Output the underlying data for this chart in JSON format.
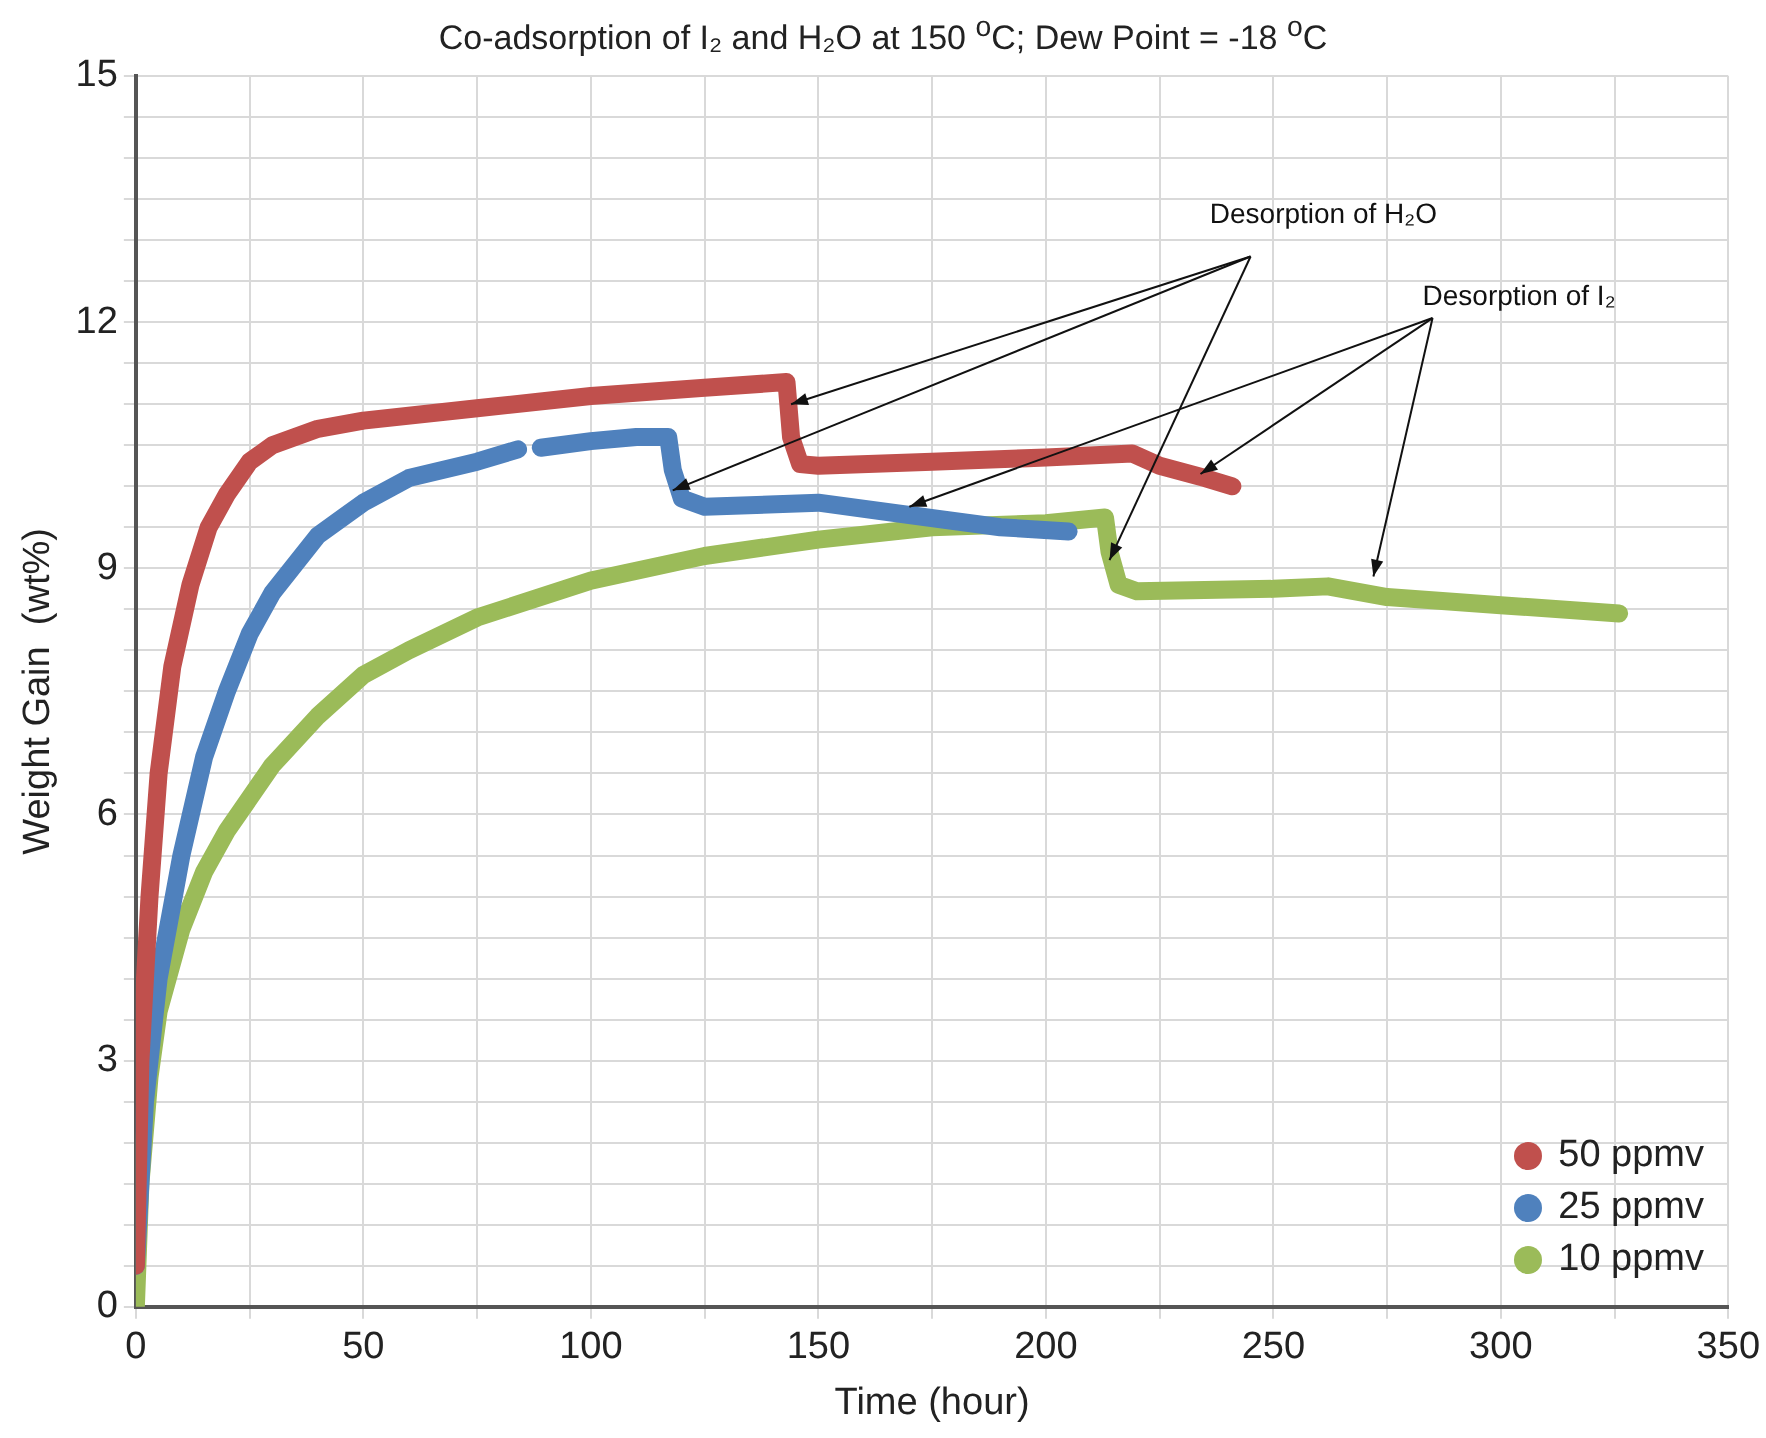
{
  "chart_data": {
    "type": "line",
    "title": "Co-adsorption of I₂ and H₂O at 150 $^{o}$C; Dew Point = -18 $^{o}$C",
    "xlabel": "Time (hour)",
    "ylabel": "Weight Gain  (wt%)",
    "xlim": [
      0,
      350
    ],
    "ylim": [
      0,
      15
    ],
    "xticks": [
      0,
      {
        "value": 25,
        "label": null
      },
      50,
      {
        "value": 75,
        "label": null
      },
      100,
      {
        "value": 125,
        "label": null
      },
      150,
      {
        "value": 175,
        "label": null
      },
      200,
      {
        "value": 225,
        "label": null
      },
      250,
      {
        "value": 275,
        "label": null
      },
      300,
      {
        "value": 325,
        "label": null
      },
      350
    ],
    "yticks": [
      0,
      {
        "value": 0.5,
        "label": null
      },
      {
        "value": 1,
        "label": null
      },
      {
        "value": 1.5,
        "label": null
      },
      {
        "value": 2,
        "label": null
      },
      {
        "value": 2.5,
        "label": null
      },
      3,
      {
        "value": 3.5,
        "label": null
      },
      {
        "value": 4,
        "label": null
      },
      {
        "value": 4.5,
        "label": null
      },
      {
        "value": 5,
        "label": null
      },
      {
        "value": 5.5,
        "label": null
      },
      6,
      {
        "value": 6.5,
        "label": null
      },
      {
        "value": 7,
        "label": null
      },
      {
        "value": 7.5,
        "label": null
      },
      {
        "value": 8,
        "label": null
      },
      {
        "value": 8.5,
        "label": null
      },
      9,
      {
        "value": 9.5,
        "label": null
      },
      {
        "value": 10,
        "label": null
      },
      {
        "value": 10.5,
        "label": null
      },
      {
        "value": 11,
        "label": null
      },
      {
        "value": 11.5,
        "label": null
      },
      12,
      {
        "value": 12.5,
        "label": null
      },
      {
        "value": 13,
        "label": null
      },
      {
        "value": 13.5,
        "label": null
      },
      {
        "value": 14,
        "label": null
      },
      {
        "value": 14.5,
        "label": null
      },
      15
    ],
    "grid": true,
    "legend": "bottom right",
    "line_style": "solid",
    "annotations": [
      {
        "text": "Desorption of H₂O",
        "x": 144,
        "y": 11.0
      },
      {
        "text": "Desorption of I₂",
        "x": 170,
        "y": 9.75
      }
    ],
    "series": [
      {
        "name": "50 ppmv",
        "color": "#c0504d",
        "x": [
          0,
          1,
          3,
          5,
          8,
          12,
          16,
          20,
          25,
          30,
          40,
          50,
          75,
          100,
          125,
          143,
          144,
          146,
          150,
          175,
          200,
          219,
          225,
          235,
          241
        ],
        "values": [
          0.5,
          3,
          5,
          6.5,
          7.8,
          8.8,
          9.5,
          9.9,
          10.3,
          10.5,
          10.7,
          10.8,
          10.95,
          11.1,
          11.2,
          11.27,
          10.6,
          10.27,
          10.25,
          10.3,
          10.35,
          10.4,
          10.25,
          10.1,
          10.0
        ]
      },
      {
        "name": "25 ppmv",
        "color": "#4f81bd",
        "x": [
          0,
          2,
          5,
          10,
          15,
          20,
          25,
          30,
          40,
          50,
          60,
          75,
          84,
          86,
          89,
          100,
          110,
          117,
          118,
          120,
          125,
          150,
          170,
          190,
          205
        ],
        "values": [
          0.5,
          2.5,
          4,
          5.5,
          6.7,
          7.5,
          8.2,
          8.7,
          9.4,
          9.8,
          10.1,
          10.3,
          10.45,
          null,
          10.47,
          10.55,
          10.6,
          10.6,
          10.2,
          9.85,
          9.75,
          9.8,
          9.65,
          9.5,
          9.45
        ]
      },
      {
        "name": "10 ppmv",
        "color": "#9bbb59",
        "x": [
          0,
          1,
          3,
          5,
          10,
          15,
          20,
          30,
          40,
          50,
          60,
          75,
          100,
          125,
          150,
          175,
          200,
          213,
          214,
          216,
          220,
          250,
          262,
          275,
          300,
          326
        ],
        "values": [
          0,
          1.5,
          2.8,
          3.6,
          4.6,
          5.3,
          5.8,
          6.6,
          7.2,
          7.7,
          8.0,
          8.4,
          8.85,
          9.15,
          9.35,
          9.5,
          9.55,
          9.62,
          9.2,
          8.8,
          8.72,
          8.75,
          8.78,
          8.65,
          8.55,
          8.45
        ]
      }
    ]
  }
}
